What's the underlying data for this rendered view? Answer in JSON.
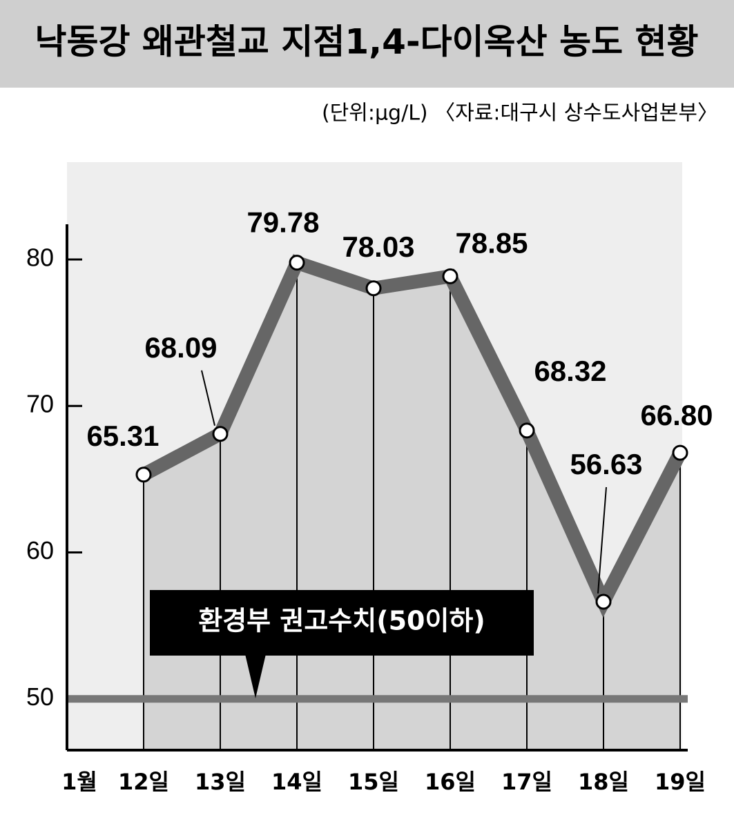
{
  "chart_data": {
    "type": "line",
    "title": "낙동강 왜관철교 지점1,4-다이옥산 농도 현황",
    "subtitle": "(단위:μg/L) 〈자료:대구시 상수도사업본부〉",
    "month_label": "1월",
    "categories": [
      "12일",
      "13일",
      "14일",
      "15일",
      "16일",
      "17일",
      "18일",
      "19일"
    ],
    "values": [
      65.31,
      68.09,
      79.78,
      78.03,
      78.85,
      68.32,
      56.63,
      66.8
    ],
    "value_labels": [
      "65.31",
      "68.09",
      "79.78",
      "78.03",
      "78.85",
      "68.32",
      "56.63",
      "66.80"
    ],
    "color": "#666666",
    "ylim": [
      46.5,
      82.4
    ],
    "yticks": [
      50,
      60,
      70,
      80
    ],
    "threshold": 50,
    "threshold_label": "환경부 권고수치(50이하)"
  }
}
